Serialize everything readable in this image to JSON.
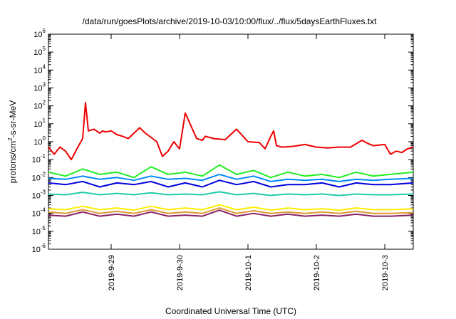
{
  "chart_data": {
    "type": "line",
    "title": "/data/run/goesPlots/archive/2019-10-03/10:00/flux/../flux/5daysEarthFluxes.txt",
    "xlabel": "Coordinated Universal Time (UTC)",
    "ylabel_base": "protons/cm",
    "ylabel_sup": "2",
    "ylabel_rest": "-s-sr-MeV",
    "yscale": "log",
    "ylim": [
      1e-06,
      1000000.0
    ],
    "xlim": [
      "2019-09-28 02:00",
      "2019-10-03 10:00"
    ],
    "grid": false,
    "legend": "none",
    "y_ticks": [
      {
        "mant": "10",
        "exp": "-6",
        "value": 1e-06
      },
      {
        "mant": "10",
        "exp": "-5",
        "value": 1e-05
      },
      {
        "mant": "10",
        "exp": "-4",
        "value": 0.0001
      },
      {
        "mant": "10",
        "exp": "-3",
        "value": 0.001
      },
      {
        "mant": "10",
        "exp": "-2",
        "value": 0.01
      },
      {
        "mant": "10",
        "exp": "-1",
        "value": 0.1
      },
      {
        "mant": "10",
        "exp": "0",
        "value": 1
      },
      {
        "mant": "10",
        "exp": "1",
        "value": 10
      },
      {
        "mant": "10",
        "exp": "2",
        "value": 100
      },
      {
        "mant": "10",
        "exp": "3",
        "value": 1000
      },
      {
        "mant": "10",
        "exp": "4",
        "value": 10000
      },
      {
        "mant": "10",
        "exp": "5",
        "value": 100000
      },
      {
        "mant": "10",
        "exp": "6",
        "value": 1000000
      }
    ],
    "x_ticks": [
      {
        "label": "2019-9-29",
        "x": "2019-09-29 00:00"
      },
      {
        "label": "2019-9-30",
        "x": "2019-09-30 00:00"
      },
      {
        "label": "2019-10-1",
        "x": "2019-10-01 00:00"
      },
      {
        "label": "2019-10-2",
        "x": "2019-10-02 00:00"
      },
      {
        "label": "2019-10-3",
        "x": "2019-10-03 00:00"
      }
    ],
    "series": [
      {
        "color": "#ee0000",
        "x": [
          "2019-09-28 02:00",
          "2019-09-28 04:00",
          "2019-09-28 06:00",
          "2019-09-28 08:00",
          "2019-09-28 10:00",
          "2019-09-28 12:00",
          "2019-09-28 14:00",
          "2019-09-28 15:00",
          "2019-09-28 16:00",
          "2019-09-28 18:00",
          "2019-09-28 20:00",
          "2019-09-28 21:00",
          "2019-09-28 22:00",
          "2019-09-29 00:00",
          "2019-09-29 02:00",
          "2019-09-29 04:00",
          "2019-09-29 06:00",
          "2019-09-29 08:00",
          "2019-09-29 10:00",
          "2019-09-29 12:00",
          "2019-09-29 16:00",
          "2019-09-29 18:00",
          "2019-09-29 20:00",
          "2019-09-29 22:00",
          "2019-09-30 00:00",
          "2019-09-30 02:00",
          "2019-09-30 06:00",
          "2019-09-30 08:00",
          "2019-09-30 09:00",
          "2019-09-30 12:00",
          "2019-09-30 16:00",
          "2019-09-30 20:00",
          "2019-10-01 00:00",
          "2019-10-01 04:00",
          "2019-10-01 06:00",
          "2019-10-01 08:00",
          "2019-10-01 09:00",
          "2019-10-01 10:00",
          "2019-10-01 12:00",
          "2019-10-01 16:00",
          "2019-10-01 20:00",
          "2019-10-02 00:00",
          "2019-10-02 04:00",
          "2019-10-02 08:00",
          "2019-10-02 12:00",
          "2019-10-02 16:00",
          "2019-10-02 18:00",
          "2019-10-02 20:00",
          "2019-10-03 00:00",
          "2019-10-03 02:00",
          "2019-10-03 04:00",
          "2019-10-03 06:00",
          "2019-10-03 08:00",
          "2019-10-03 10:00"
        ],
        "y": [
          0.5,
          0.2,
          0.5,
          0.3,
          0.1,
          0.4,
          1.5,
          150,
          4,
          5,
          3,
          4,
          3.5,
          4,
          2.5,
          2,
          1.5,
          3,
          6,
          3,
          1,
          0.15,
          0.3,
          1,
          0.4,
          40,
          1.5,
          1.2,
          2,
          1.5,
          1.3,
          5,
          1,
          0.9,
          0.4,
          2,
          4,
          0.6,
          0.5,
          0.55,
          0.7,
          0.5,
          0.45,
          0.5,
          0.5,
          1.2,
          0.8,
          0.6,
          0.7,
          0.2,
          0.3,
          0.25,
          0.4,
          0.5
        ]
      },
      {
        "color": "#22ee22",
        "x": [
          "2019-09-28 02:00",
          "2019-09-28 08:00",
          "2019-09-28 14:00",
          "2019-09-28 20:00",
          "2019-09-29 02:00",
          "2019-09-29 08:00",
          "2019-09-29 14:00",
          "2019-09-29 20:00",
          "2019-09-30 02:00",
          "2019-09-30 08:00",
          "2019-09-30 14:00",
          "2019-09-30 20:00",
          "2019-10-01 02:00",
          "2019-10-01 08:00",
          "2019-10-01 14:00",
          "2019-10-01 20:00",
          "2019-10-02 02:00",
          "2019-10-02 08:00",
          "2019-10-02 14:00",
          "2019-10-02 20:00",
          "2019-10-03 02:00",
          "2019-10-03 10:00"
        ],
        "y": [
          0.02,
          0.012,
          0.03,
          0.015,
          0.02,
          0.01,
          0.04,
          0.015,
          0.02,
          0.012,
          0.05,
          0.015,
          0.025,
          0.01,
          0.02,
          0.012,
          0.015,
          0.01,
          0.02,
          0.012,
          0.015,
          0.02
        ]
      },
      {
        "color": "#0088ff",
        "x": [
          "2019-09-28 02:00",
          "2019-09-28 08:00",
          "2019-09-28 14:00",
          "2019-09-28 20:00",
          "2019-09-29 02:00",
          "2019-09-29 08:00",
          "2019-09-29 14:00",
          "2019-09-29 20:00",
          "2019-09-30 02:00",
          "2019-09-30 08:00",
          "2019-09-30 14:00",
          "2019-09-30 20:00",
          "2019-10-01 02:00",
          "2019-10-01 08:00",
          "2019-10-01 14:00",
          "2019-10-01 20:00",
          "2019-10-02 02:00",
          "2019-10-02 08:00",
          "2019-10-02 14:00",
          "2019-10-02 20:00",
          "2019-10-03 02:00",
          "2019-10-03 10:00"
        ],
        "y": [
          0.009,
          0.008,
          0.012,
          0.008,
          0.01,
          0.007,
          0.012,
          0.008,
          0.009,
          0.007,
          0.015,
          0.008,
          0.012,
          0.006,
          0.008,
          0.007,
          0.008,
          0.006,
          0.008,
          0.007,
          0.008,
          0.009
        ]
      },
      {
        "color": "#0000dd",
        "x": [
          "2019-09-28 02:00",
          "2019-09-28 08:00",
          "2019-09-28 14:00",
          "2019-09-28 20:00",
          "2019-09-29 02:00",
          "2019-09-29 08:00",
          "2019-09-29 14:00",
          "2019-09-29 20:00",
          "2019-09-30 02:00",
          "2019-09-30 08:00",
          "2019-09-30 14:00",
          "2019-09-30 20:00",
          "2019-10-01 02:00",
          "2019-10-01 08:00",
          "2019-10-01 14:00",
          "2019-10-01 20:00",
          "2019-10-02 02:00",
          "2019-10-02 08:00",
          "2019-10-02 14:00",
          "2019-10-02 20:00",
          "2019-10-03 02:00",
          "2019-10-03 10:00"
        ],
        "y": [
          0.005,
          0.004,
          0.006,
          0.003,
          0.005,
          0.004,
          0.006,
          0.003,
          0.005,
          0.003,
          0.007,
          0.004,
          0.006,
          0.003,
          0.004,
          0.004,
          0.005,
          0.003,
          0.005,
          0.004,
          0.004,
          0.005
        ]
      },
      {
        "color": "#22ccaa",
        "x": [
          "2019-09-28 02:00",
          "2019-09-28 08:00",
          "2019-09-28 14:00",
          "2019-09-28 20:00",
          "2019-09-29 02:00",
          "2019-09-29 08:00",
          "2019-09-29 14:00",
          "2019-09-29 20:00",
          "2019-09-30 02:00",
          "2019-09-30 08:00",
          "2019-09-30 14:00",
          "2019-09-30 20:00",
          "2019-10-01 02:00",
          "2019-10-01 08:00",
          "2019-10-01 14:00",
          "2019-10-01 20:00",
          "2019-10-02 02:00",
          "2019-10-02 08:00",
          "2019-10-02 14:00",
          "2019-10-02 20:00",
          "2019-10-03 02:00",
          "2019-10-03 10:00"
        ],
        "y": [
          0.0012,
          0.0011,
          0.0015,
          0.0011,
          0.0013,
          0.0011,
          0.0014,
          0.0011,
          0.0012,
          0.0011,
          0.0016,
          0.0011,
          0.0013,
          0.001,
          0.0012,
          0.0011,
          0.0012,
          0.001,
          0.0012,
          0.0011,
          0.0011,
          0.0012
        ]
      },
      {
        "color": "#ffee00",
        "x": [
          "2019-09-28 02:00",
          "2019-09-28 08:00",
          "2019-09-28 14:00",
          "2019-09-28 20:00",
          "2019-09-29 02:00",
          "2019-09-29 08:00",
          "2019-09-29 14:00",
          "2019-09-29 20:00",
          "2019-09-30 02:00",
          "2019-09-30 08:00",
          "2019-09-30 14:00",
          "2019-09-30 20:00",
          "2019-10-01 02:00",
          "2019-10-01 08:00",
          "2019-10-01 14:00",
          "2019-10-01 20:00",
          "2019-10-02 02:00",
          "2019-10-02 08:00",
          "2019-10-02 14:00",
          "2019-10-02 20:00",
          "2019-10-03 02:00",
          "2019-10-03 10:00"
        ],
        "y": [
          0.00018,
          0.00016,
          0.00025,
          0.00016,
          0.0002,
          0.00015,
          0.00025,
          0.00016,
          0.0002,
          0.00016,
          0.0003,
          0.00016,
          0.00022,
          0.00015,
          0.0002,
          0.00016,
          0.00018,
          0.00015,
          0.0002,
          0.00016,
          0.00016,
          0.00018
        ]
      },
      {
        "color": "#dd9933",
        "x": [
          "2019-09-28 02:00",
          "2019-09-28 08:00",
          "2019-09-28 14:00",
          "2019-09-28 20:00",
          "2019-09-29 02:00",
          "2019-09-29 08:00",
          "2019-09-29 14:00",
          "2019-09-29 20:00",
          "2019-09-30 02:00",
          "2019-09-30 08:00",
          "2019-09-30 14:00",
          "2019-09-30 20:00",
          "2019-10-01 02:00",
          "2019-10-01 08:00",
          "2019-10-01 14:00",
          "2019-10-01 20:00",
          "2019-10-02 02:00",
          "2019-10-02 08:00",
          "2019-10-02 14:00",
          "2019-10-02 20:00",
          "2019-10-03 02:00",
          "2019-10-03 10:00"
        ],
        "y": [
          0.00012,
          0.0001,
          0.00016,
          0.0001,
          0.00013,
          0.0001,
          0.00016,
          0.0001,
          0.00012,
          0.0001,
          0.0002,
          0.0001,
          0.00014,
          0.0001,
          0.00012,
          0.0001,
          0.00012,
          0.0001,
          0.00013,
          0.0001,
          0.0001,
          0.00011
        ]
      },
      {
        "color": "#882266",
        "x": [
          "2019-09-28 02:00",
          "2019-09-28 08:00",
          "2019-09-28 14:00",
          "2019-09-28 20:00",
          "2019-09-29 02:00",
          "2019-09-29 08:00",
          "2019-09-29 14:00",
          "2019-09-29 20:00",
          "2019-09-30 02:00",
          "2019-09-30 08:00",
          "2019-09-30 14:00",
          "2019-09-30 20:00",
          "2019-10-01 02:00",
          "2019-10-01 08:00",
          "2019-10-01 14:00",
          "2019-10-01 20:00",
          "2019-10-02 02:00",
          "2019-10-02 08:00",
          "2019-10-02 14:00",
          "2019-10-02 20:00",
          "2019-10-03 02:00",
          "2019-10-03 10:00"
        ],
        "y": [
          8e-05,
          7e-05,
          0.00012,
          7e-05,
          9e-05,
          7e-05,
          0.00012,
          7e-05,
          8e-05,
          7e-05,
          0.00015,
          7e-05,
          0.0001,
          7e-05,
          9e-05,
          7e-05,
          8e-05,
          7e-05,
          9e-05,
          7e-05,
          7e-05,
          8e-05
        ]
      }
    ]
  }
}
